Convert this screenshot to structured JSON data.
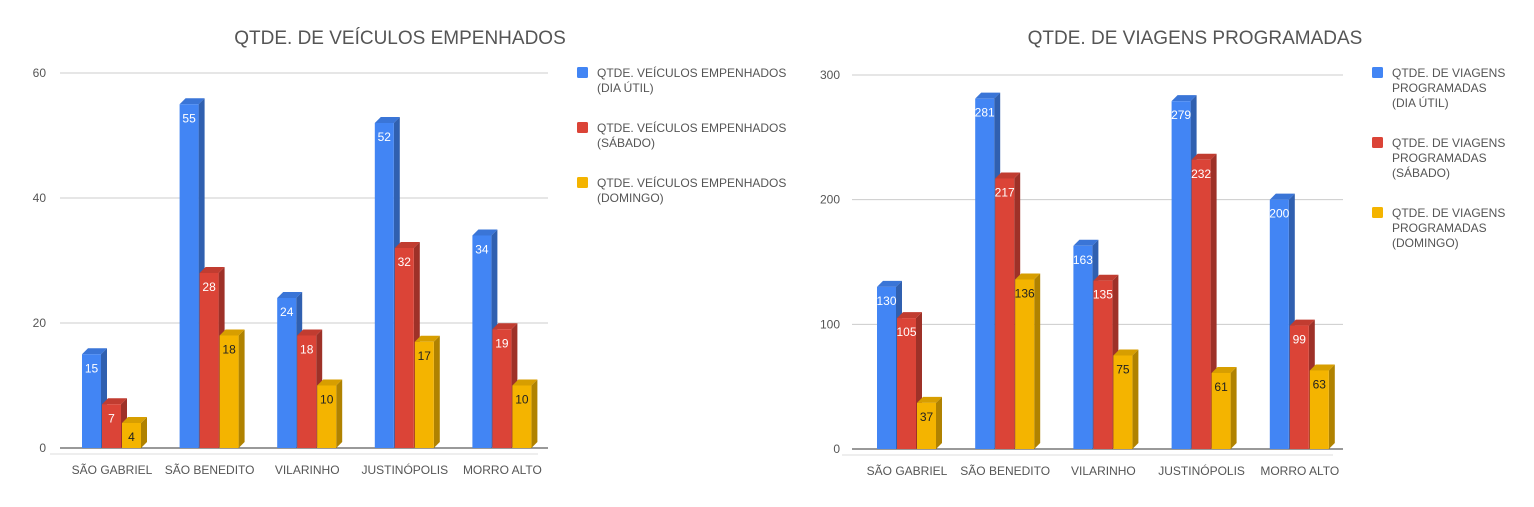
{
  "colors": {
    "blue": "#4285f4",
    "red": "#db4437",
    "yellow": "#f4b400",
    "grid": "#cccccc",
    "text": "#555555",
    "title": "#555555"
  },
  "chart_data": [
    {
      "type": "bar",
      "title": "QTDE. DE VEÍCULOS EMPENHADOS",
      "categories": [
        "SÃO GABRIEL",
        "SÃO BENEDITO",
        "VILARINHO",
        "JUSTINÓPOLIS",
        "MORRO ALTO"
      ],
      "series": [
        {
          "name": "QTDE. VEÍCULOS EMPENHADOS (DIA ÚTIL)",
          "legend_lines": [
            "QTDE. VEÍCULOS EMPENHADOS",
            "(DIA ÚTIL)"
          ],
          "color": "#4285f4",
          "values": [
            15,
            55,
            24,
            52,
            34
          ]
        },
        {
          "name": "QTDE. VEÍCULOS EMPENHADOS (SÁBADO)",
          "legend_lines": [
            "QTDE. VEÍCULOS EMPENHADOS",
            "(SÁBADO)"
          ],
          "color": "#db4437",
          "values": [
            7,
            28,
            18,
            32,
            19
          ]
        },
        {
          "name": "QTDE. VEÍCULOS EMPENHADOS (DOMINGO)",
          "legend_lines": [
            "QTDE. VEÍCULOS EMPENHADOS",
            "(DOMINGO)"
          ],
          "color": "#f4b400",
          "values": [
            4,
            18,
            10,
            17,
            10
          ]
        }
      ],
      "yticks": [
        0,
        20,
        40,
        60
      ],
      "ylim": [
        0,
        60
      ],
      "grid": true,
      "legend": "right",
      "style": "3d"
    },
    {
      "type": "bar",
      "title": "QTDE. DE VIAGENS PROGRAMADAS",
      "categories": [
        "SÃO GABRIEL",
        "SÃO BENEDITO",
        "VILARINHO",
        "JUSTINÓPOLIS",
        "MORRO ALTO"
      ],
      "series": [
        {
          "name": "QTDE. DE VIAGENS PROGRAMADAS (DIA ÚTIL)",
          "legend_lines": [
            "QTDE. DE VIAGENS",
            "PROGRAMADAS",
            "(DIA ÚTIL)"
          ],
          "color": "#4285f4",
          "values": [
            130,
            281,
            163,
            279,
            200
          ]
        },
        {
          "name": "QTDE. DE VIAGENS PROGRAMADAS (SÁBADO)",
          "legend_lines": [
            "QTDE. DE VIAGENS",
            "PROGRAMADAS",
            "(SÁBADO)"
          ],
          "color": "#db4437",
          "values": [
            105,
            217,
            135,
            232,
            99
          ]
        },
        {
          "name": "QTDE. DE VIAGENS PROGRAMADAS (DOMINGO)",
          "legend_lines": [
            "QTDE. DE VIAGENS",
            "PROGRAMADAS",
            "(DOMINGO)"
          ],
          "color": "#f4b400",
          "values": [
            37,
            136,
            75,
            61,
            63
          ]
        }
      ],
      "yticks": [
        0,
        100,
        200,
        300
      ],
      "ylim": [
        0,
        300
      ],
      "grid": true,
      "legend": "right",
      "style": "3d"
    }
  ]
}
